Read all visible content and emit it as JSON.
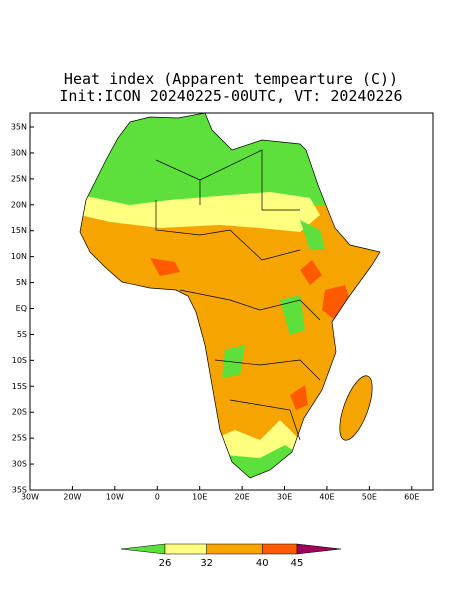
{
  "header": {
    "title": "Heat index (Apparent tempearture (C))",
    "subtitle": "Init:ICON 20240225-00UTC, VT: 20240226"
  },
  "map": {
    "lon_range": [
      -30,
      65
    ],
    "lat_range": [
      -35,
      37.7
    ],
    "lat_ticks": [
      {
        "value": 35,
        "label": "35N"
      },
      {
        "value": 30,
        "label": "30N"
      },
      {
        "value": 25,
        "label": "25N"
      },
      {
        "value": 20,
        "label": "20N"
      },
      {
        "value": 15,
        "label": "15N"
      },
      {
        "value": 10,
        "label": "10N"
      },
      {
        "value": 5,
        "label": "5N"
      },
      {
        "value": 0,
        "label": "EQ"
      },
      {
        "value": -5,
        "label": "5S"
      },
      {
        "value": -10,
        "label": "10S"
      },
      {
        "value": -15,
        "label": "15S"
      },
      {
        "value": -20,
        "label": "20S"
      },
      {
        "value": -25,
        "label": "25S"
      },
      {
        "value": -30,
        "label": "30S"
      },
      {
        "value": -35,
        "label": "35S"
      }
    ],
    "lon_ticks": [
      {
        "value": -30,
        "label": "30W"
      },
      {
        "value": -20,
        "label": "20W"
      },
      {
        "value": -10,
        "label": "10W"
      },
      0,
      {
        "value": 10,
        "label": "10E"
      },
      {
        "value": 20,
        "label": "20E"
      },
      {
        "value": 30,
        "label": "30E"
      },
      {
        "value": 40,
        "label": "40E"
      },
      {
        "value": 50,
        "label": "50E"
      },
      {
        "value": 60,
        "label": "60E"
      }
    ]
  },
  "colorbar": {
    "levels": [
      26,
      32,
      40,
      45
    ],
    "colors": [
      "#5ee03c",
      "#ffff80",
      "#f5a400",
      "#ff5a00",
      "#a0005a"
    ]
  }
}
